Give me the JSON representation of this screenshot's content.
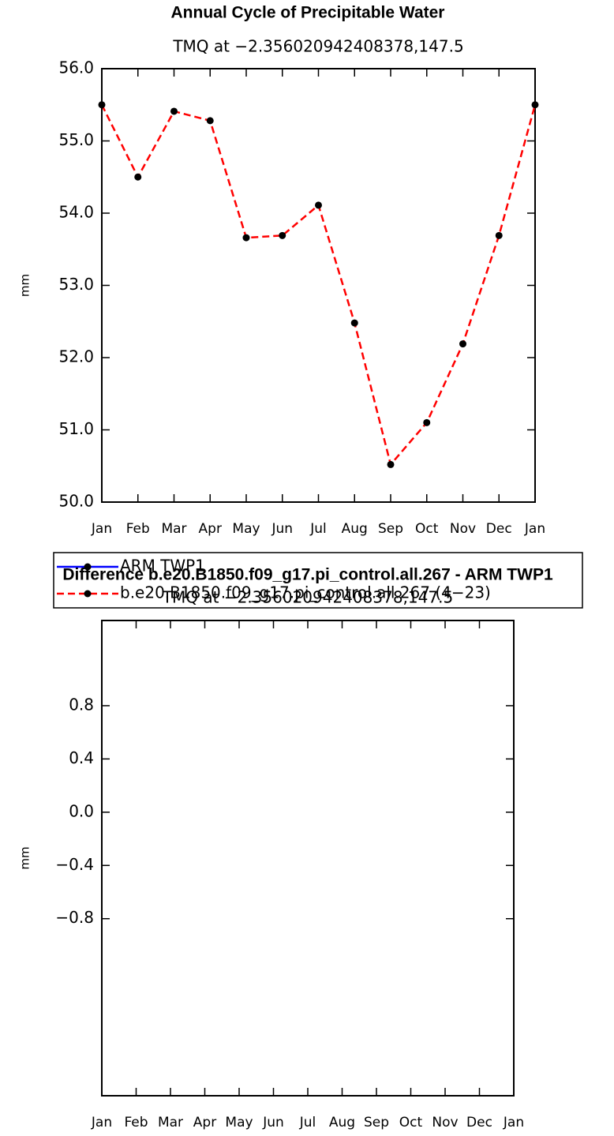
{
  "chart_data": [
    {
      "type": "line",
      "title": "Annual Cycle of Precipitable Water",
      "subtitle": "TMQ at −2.356020942408378,147.5",
      "ylabel": "mm",
      "categories": [
        "Jan",
        "Feb",
        "Mar",
        "Apr",
        "May",
        "Jun",
        "Jul",
        "Aug",
        "Sep",
        "Oct",
        "Nov",
        "Dec",
        "Jan"
      ],
      "ylim": [
        50,
        56
      ],
      "yticks": [
        {
          "value": 50,
          "label": "50.0"
        },
        {
          "value": 51,
          "label": "51.0"
        },
        {
          "value": 52,
          "label": "52.0"
        },
        {
          "value": 53,
          "label": "53.0"
        },
        {
          "value": 54,
          "label": "54.0"
        },
        {
          "value": 55,
          "label": "55.0"
        },
        {
          "value": 56,
          "label": "56.0"
        }
      ],
      "series": [
        {
          "name": "ARM TWP1",
          "color": "#0000ff",
          "dashed": false,
          "values": [
            null,
            null,
            null,
            null,
            null,
            null,
            null,
            null,
            null,
            null,
            null,
            null,
            null
          ]
        },
        {
          "name": "b.e20.B1850.f09_g17.pi_control.all.267 (4−23)",
          "color": "#ff0000",
          "dashed": true,
          "values": [
            55.5,
            54.5,
            55.41,
            55.28,
            53.66,
            53.69,
            54.11,
            52.48,
            50.52,
            51.1,
            52.19,
            53.69,
            55.5
          ]
        }
      ]
    },
    {
      "type": "line",
      "title": "Difference b.e20.B1850.f09_g17.pi_control.all.267 - ARM TWP1",
      "subtitle": "TMQ at −2.356020942408378,147.5",
      "ylabel": "mm",
      "categories": [
        "Jan",
        "Feb",
        "Mar",
        "Apr",
        "May",
        "Jun",
        "Jul",
        "Aug",
        "Sep",
        "Oct",
        "Nov",
        "Dec",
        "Jan"
      ],
      "ylim": [
        -2.13,
        1.44
      ],
      "yticks": [
        {
          "value": -0.8,
          "label": "−0.8"
        },
        {
          "value": -0.4,
          "label": "−0.4"
        },
        {
          "value": 0,
          "label": "0.0"
        },
        0.4,
        0.8
      ]
    }
  ]
}
